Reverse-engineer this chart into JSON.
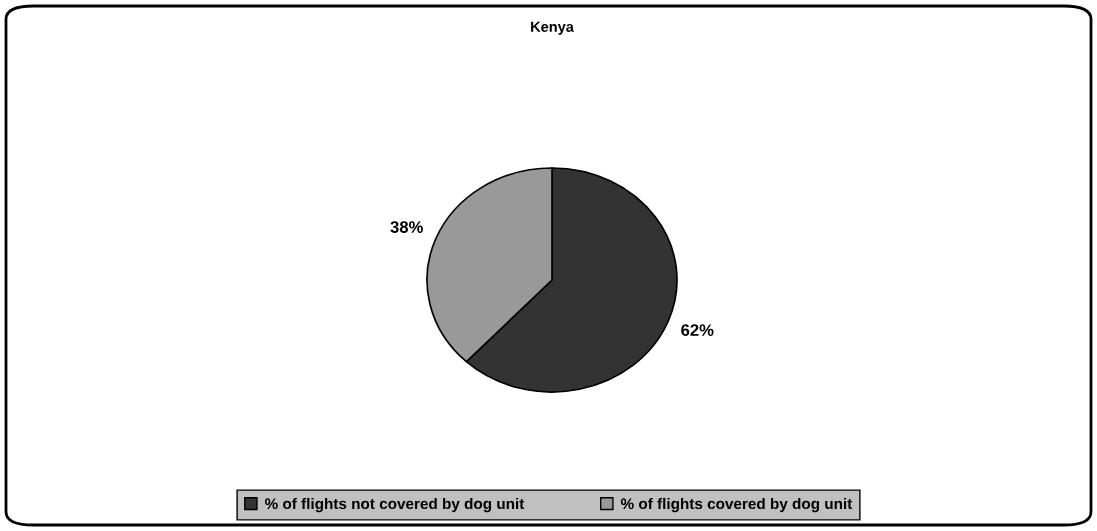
{
  "chart_data": {
    "type": "pie",
    "title": "Kenya",
    "categories": [
      "% of flights not covered by dog unit",
      "% of flights covered by dog unit"
    ],
    "values": [
      62,
      38
    ],
    "colors": [
      "#333333",
      "#999999"
    ],
    "value_labels": [
      "62%",
      "38%"
    ],
    "legend": "bottom"
  }
}
